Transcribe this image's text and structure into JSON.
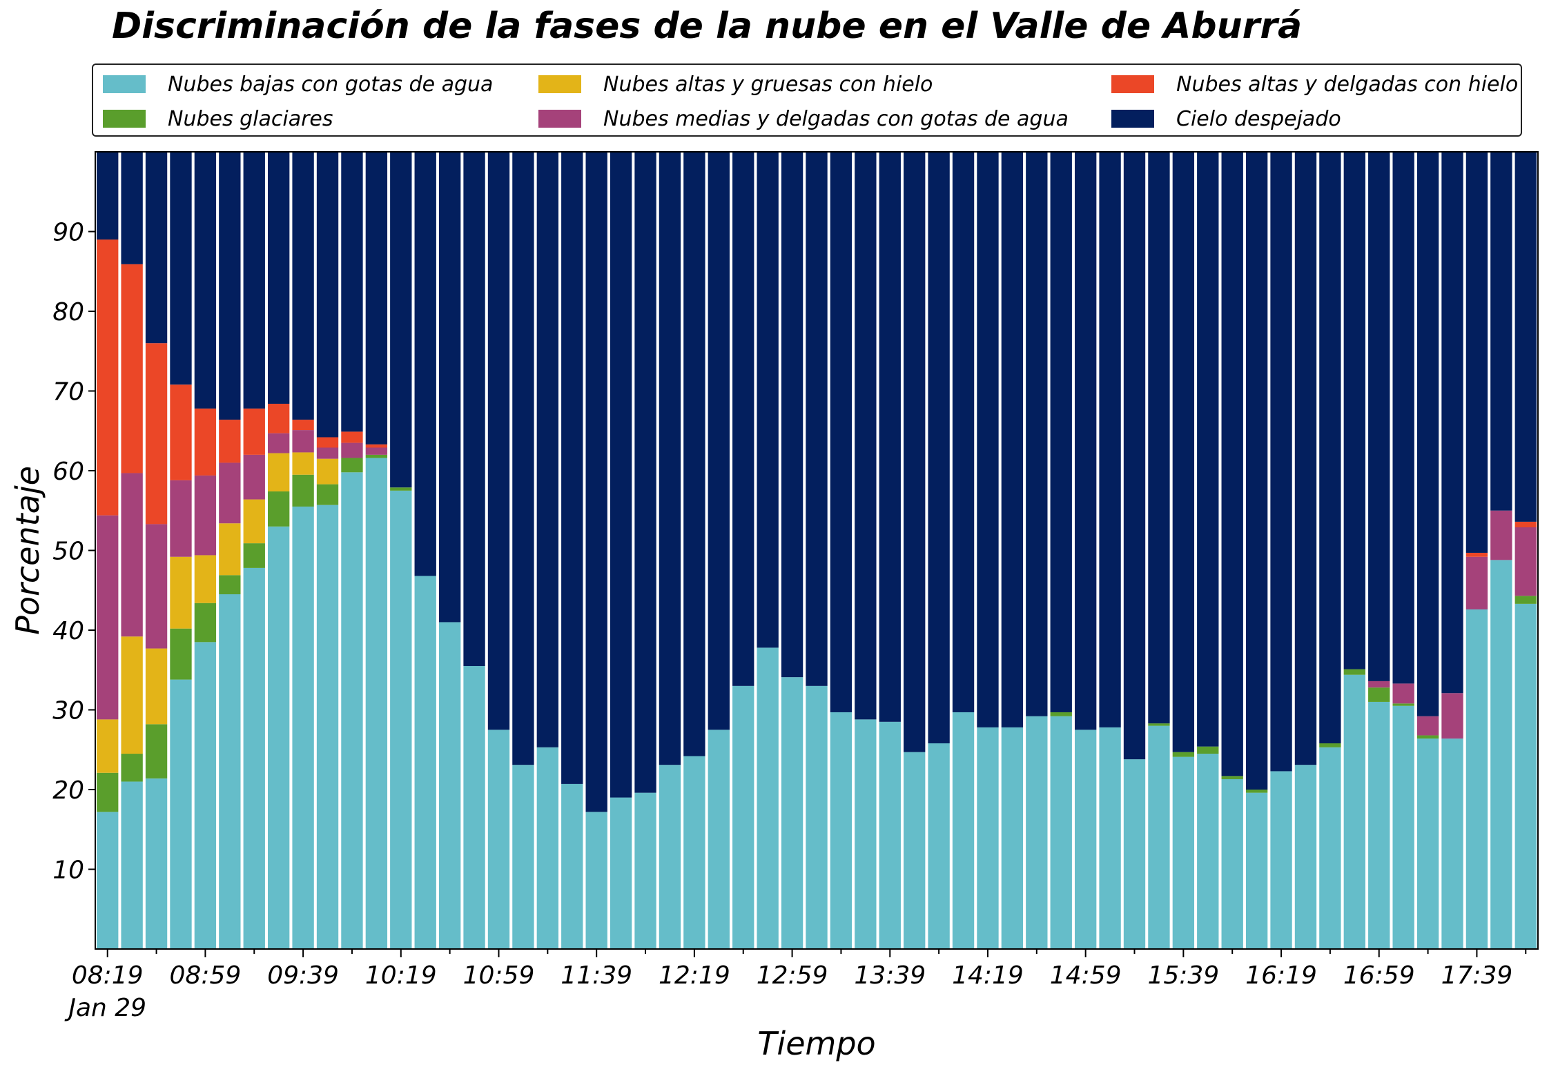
{
  "chart_data": {
    "type": "bar",
    "stacked": true,
    "title": "Discriminación de la fases de la nube en el Valle de Aburrá",
    "xlabel": "Tiempo",
    "ylabel": "Porcentaje",
    "ylim": [
      0,
      100
    ],
    "yticks": [
      10,
      20,
      30,
      40,
      50,
      60,
      70,
      80,
      90
    ],
    "legend_position": "top, 3 columns",
    "x_date_label": "Jan 29",
    "x_tick_labels": [
      {
        "index": 0,
        "label": "08:19"
      },
      {
        "index": 4,
        "label": "08:59"
      },
      {
        "index": 8,
        "label": "09:39"
      },
      {
        "index": 12,
        "label": "10:19"
      },
      {
        "index": 16,
        "label": "10:59"
      },
      {
        "index": 20,
        "label": "11:39"
      },
      {
        "index": 24,
        "label": "12:19"
      },
      {
        "index": 28,
        "label": "12:59"
      },
      {
        "index": 32,
        "label": "13:39"
      },
      {
        "index": 36,
        "label": "14:19"
      },
      {
        "index": 40,
        "label": "14:59"
      },
      {
        "index": 44,
        "label": "15:39"
      },
      {
        "index": 48,
        "label": "16:19"
      },
      {
        "index": 52,
        "label": "16:59"
      },
      {
        "index": 56,
        "label": "17:39"
      }
    ],
    "series": [
      {
        "name": "Nubes bajas con gotas de agua",
        "color": "#65BDC9",
        "values": [
          17.2,
          21.0,
          21.4,
          33.8,
          38.5,
          44.5,
          47.8,
          53.0,
          55.5,
          55.7,
          59.8,
          61.6,
          57.5,
          46.8,
          41.0,
          35.5,
          27.5,
          23.1,
          25.3,
          20.7,
          17.2,
          19.0,
          19.6,
          23.1,
          24.2,
          27.5,
          33.0,
          37.8,
          34.1,
          33.0,
          29.7,
          28.8,
          28.5,
          24.7,
          25.8,
          29.7,
          27.8,
          27.8,
          29.2,
          29.2,
          27.5,
          27.8,
          23.8,
          28.0,
          24.1,
          24.5,
          21.3,
          19.6,
          22.3,
          23.1,
          25.3,
          34.4,
          31.0,
          30.5,
          26.4,
          26.4,
          42.6,
          48.8,
          43.3
        ]
      },
      {
        "name": "Nubes glaciares",
        "color": "#5A9E2C",
        "values": [
          4.9,
          3.5,
          6.8,
          6.4,
          4.9,
          2.4,
          3.1,
          4.4,
          4.0,
          2.6,
          1.8,
          0.4,
          0.4,
          0,
          0,
          0,
          0,
          0,
          0,
          0,
          0,
          0,
          0,
          0,
          0,
          0,
          0,
          0,
          0,
          0,
          0,
          0,
          0,
          0,
          0,
          0,
          0,
          0,
          0,
          0.5,
          0,
          0,
          0,
          0.3,
          0.6,
          0.9,
          0.4,
          0.4,
          0,
          0,
          0.5,
          0.7,
          1.8,
          0.3,
          0.4,
          0,
          0,
          0,
          1.0
        ]
      },
      {
        "name": "Nubes altas y gruesas con hielo",
        "color": "#E3B418",
        "values": [
          6.7,
          14.7,
          9.5,
          9.0,
          6.0,
          6.5,
          5.5,
          4.8,
          2.8,
          3.2,
          0,
          0,
          0,
          0,
          0,
          0,
          0,
          0,
          0,
          0,
          0,
          0,
          0,
          0,
          0,
          0,
          0,
          0,
          0,
          0,
          0,
          0,
          0,
          0,
          0,
          0,
          0,
          0,
          0,
          0,
          0,
          0,
          0,
          0,
          0,
          0,
          0,
          0,
          0,
          0,
          0,
          0,
          0,
          0,
          0,
          0,
          0,
          0,
          0
        ]
      },
      {
        "name": "Nubes medias y delgadas con gotas de agua",
        "color": "#A5427A",
        "values": [
          25.6,
          20.5,
          15.6,
          9.6,
          10.0,
          7.6,
          5.6,
          2.5,
          2.8,
          1.4,
          1.9,
          0.9,
          0,
          0,
          0,
          0,
          0,
          0,
          0,
          0,
          0,
          0,
          0,
          0,
          0,
          0,
          0,
          0,
          0,
          0,
          0,
          0,
          0,
          0,
          0,
          0,
          0,
          0,
          0,
          0,
          0,
          0,
          0,
          0,
          0,
          0,
          0,
          0,
          0,
          0,
          0,
          0,
          0.8,
          2.5,
          2.4,
          5.7,
          6.6,
          6.2,
          8.6
        ]
      },
      {
        "name": "Nubes altas y delgadas con hielo",
        "color": "#EB4727",
        "values": [
          34.6,
          26.2,
          22.7,
          12.0,
          8.4,
          5.4,
          5.8,
          3.7,
          1.3,
          1.3,
          1.4,
          0.4,
          0,
          0,
          0,
          0,
          0,
          0,
          0,
          0,
          0,
          0,
          0,
          0,
          0,
          0,
          0,
          0,
          0,
          0,
          0,
          0,
          0,
          0,
          0,
          0,
          0,
          0,
          0,
          0,
          0,
          0,
          0,
          0,
          0,
          0,
          0,
          0,
          0,
          0,
          0,
          0,
          0,
          0,
          0,
          0,
          0.5,
          0,
          0.7
        ]
      },
      {
        "name": "Cielo despejado",
        "color": "#031F5E",
        "values": [
          11.0,
          14.1,
          24.0,
          29.2,
          32.2,
          33.6,
          32.2,
          31.6,
          33.6,
          35.8,
          35.1,
          36.7,
          42.1,
          53.2,
          59.0,
          64.5,
          72.5,
          76.9,
          74.7,
          79.3,
          82.8,
          81.0,
          80.4,
          76.9,
          75.8,
          72.5,
          67.0,
          62.2,
          65.9,
          67.0,
          70.3,
          71.2,
          71.5,
          75.3,
          74.2,
          70.3,
          72.2,
          72.2,
          70.8,
          70.3,
          72.5,
          72.2,
          76.2,
          71.7,
          75.3,
          74.6,
          78.3,
          80.0,
          77.7,
          76.9,
          74.2,
          64.9,
          66.4,
          66.7,
          70.8,
          67.9,
          50.3,
          45.0,
          46.4
        ]
      }
    ]
  }
}
